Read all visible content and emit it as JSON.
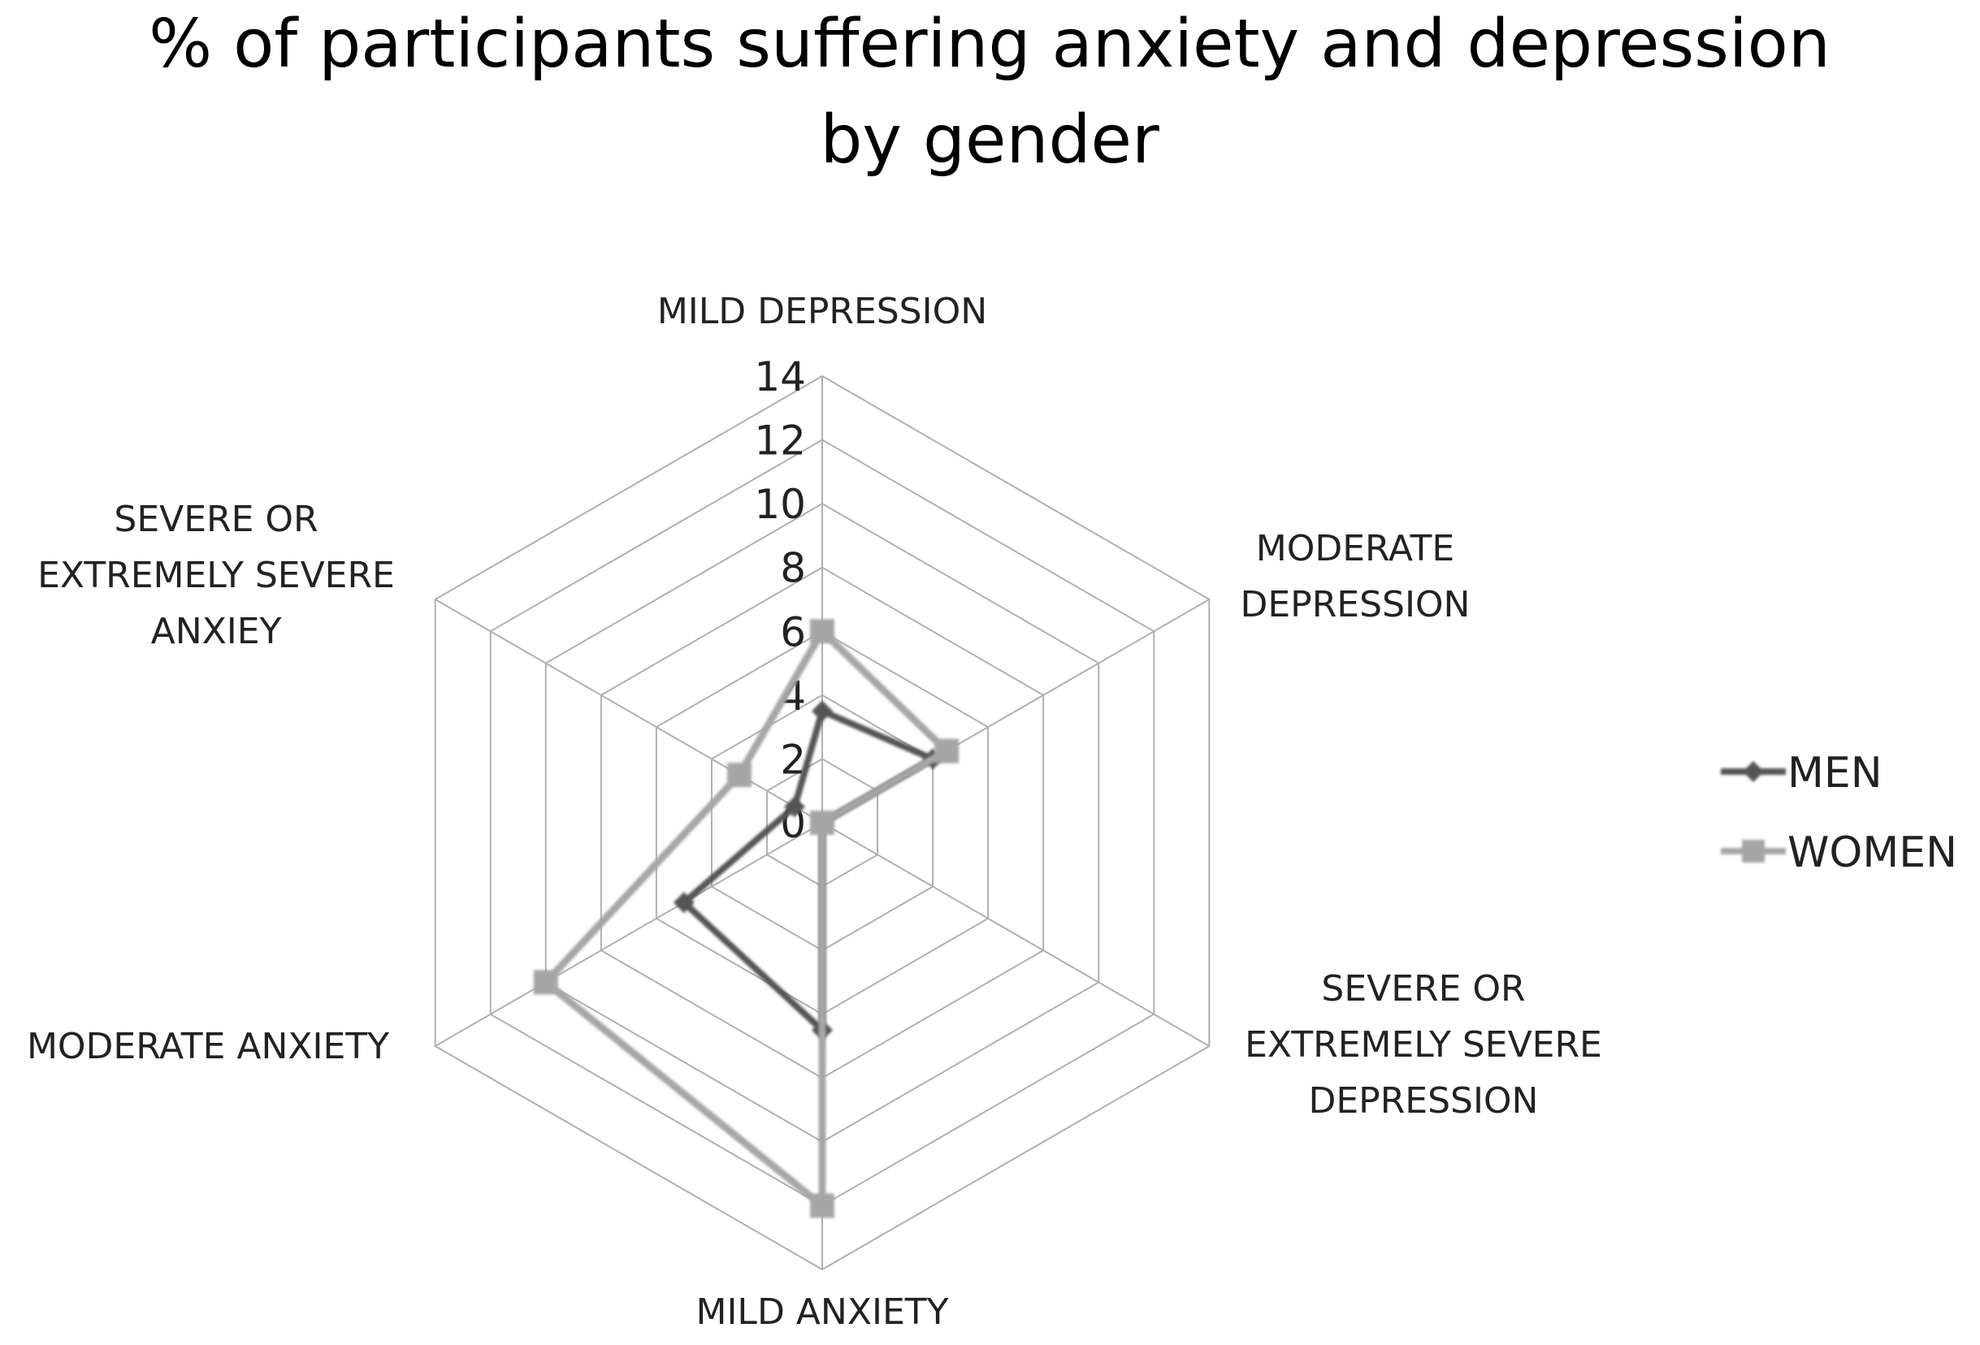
{
  "chart_data": {
    "type": "radar",
    "title": "% of participants suffering anxiety and depression by gender",
    "title_lines": [
      "% of participants suffering anxiety and depression",
      "by gender"
    ],
    "categories": [
      "MILD DEPRESSION",
      "MODERATE DEPRESSION",
      "SEVERE OR EXTREMELY SEVERE DEPRESSION",
      "MILD ANXIETY",
      "MODERATE ANXIETY",
      "SEVERE OR EXTREMELY SEVERE ANXIEY"
    ],
    "category_label_lines": [
      [
        "MILD DEPRESSION"
      ],
      [
        "MODERATE",
        "DEPRESSION"
      ],
      [
        "SEVERE OR",
        "EXTREMELY SEVERE",
        "DEPRESSION"
      ],
      [
        "MILD ANXIETY"
      ],
      [
        "MODERATE ANXIETY"
      ],
      [
        "SEVERE OR",
        "EXTREMELY SEVERE",
        "ANXIEY"
      ]
    ],
    "series": [
      {
        "name": "MEN",
        "values": [
          3.5,
          4,
          0,
          6.5,
          5,
          1
        ],
        "color": "#555555",
        "marker": "diamond"
      },
      {
        "name": "WOMEN",
        "values": [
          6,
          4.5,
          0,
          12,
          10,
          3
        ],
        "color": "#a6a6a6",
        "marker": "square"
      }
    ],
    "radial_range": [
      0,
      14
    ],
    "radial_ticks": [
      0,
      2,
      4,
      6,
      8,
      10,
      12,
      14
    ],
    "tick_labels": [
      "0",
      "2",
      "4",
      "6",
      "8",
      "10",
      "12",
      "14"
    ],
    "grid": true,
    "legend": "right"
  }
}
